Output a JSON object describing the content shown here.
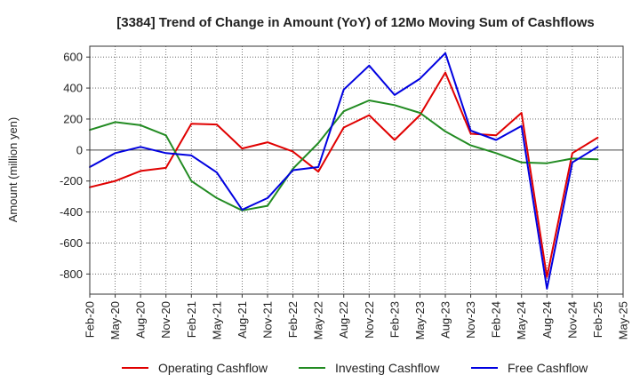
{
  "chart_data": {
    "type": "line",
    "title": "[3384]  Trend of Change in Amount (YoY) of 12Mo Moving Sum of Cashflows",
    "xlabel": "",
    "ylabel": "Amount (million yen)",
    "ylim": [
      -930,
      670
    ],
    "yticks": [
      600,
      400,
      200,
      0,
      -200,
      -400,
      -600,
      -800
    ],
    "ytick_labels": [
      "600",
      "400",
      "200",
      "0",
      "-200",
      "-400",
      "-600",
      "-800"
    ],
    "categories": [
      "Feb-20",
      "May-20",
      "Aug-20",
      "Nov-20",
      "Feb-21",
      "May-21",
      "Aug-21",
      "Nov-21",
      "Feb-22",
      "May-22",
      "Aug-22",
      "Nov-22",
      "Feb-23",
      "May-23",
      "Aug-23",
      "Nov-23",
      "Feb-24",
      "May-24",
      "Aug-24",
      "Nov-24",
      "Feb-25",
      "May-25"
    ],
    "grid": true,
    "legend_position": "bottom",
    "series": [
      {
        "name": "Operating Cashflow",
        "color": "#e00000",
        "values": [
          -240,
          -200,
          -135,
          -115,
          170,
          165,
          10,
          50,
          -10,
          -140,
          145,
          225,
          65,
          225,
          500,
          105,
          95,
          240,
          -820,
          -20,
          80,
          null
        ]
      },
      {
        "name": "Investing Cashflow",
        "color": "#228b22",
        "values": [
          130,
          180,
          160,
          95,
          -200,
          -310,
          -390,
          -360,
          -120,
          45,
          250,
          320,
          290,
          240,
          120,
          30,
          -20,
          -80,
          -85,
          -55,
          -60,
          null
        ]
      },
      {
        "name": "Free Cashflow",
        "color": "#0000e0",
        "values": [
          -110,
          -20,
          20,
          -20,
          -35,
          -145,
          -385,
          -310,
          -130,
          -110,
          390,
          545,
          355,
          460,
          625,
          125,
          65,
          155,
          -895,
          -80,
          20,
          null
        ]
      }
    ]
  }
}
